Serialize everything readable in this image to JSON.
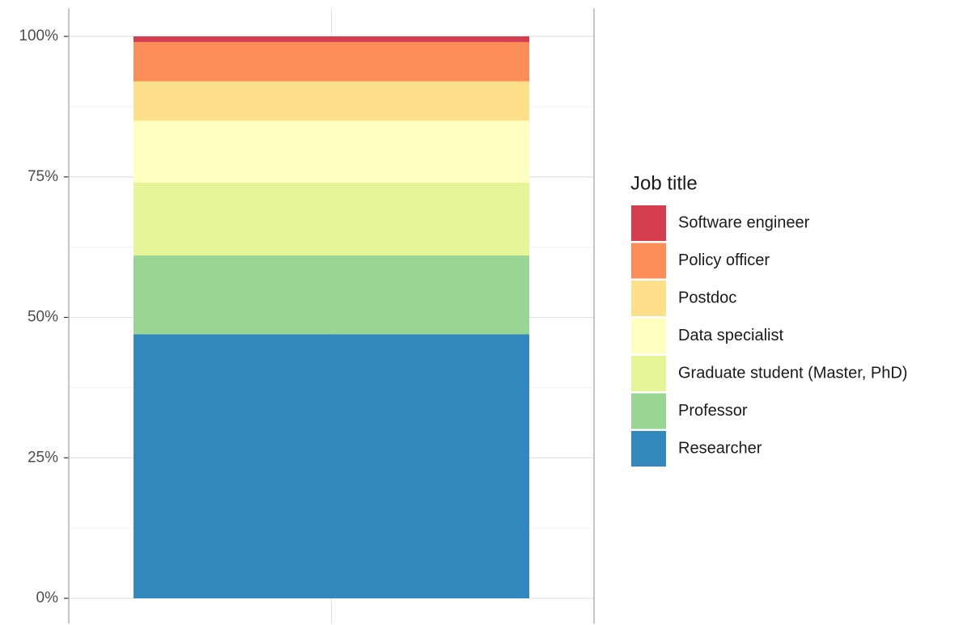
{
  "chart_data": {
    "type": "stacked_bar",
    "categories": [
      null
    ],
    "series": [
      {
        "name": "Researcher",
        "color": "#3288bd",
        "values": [
          47
        ]
      },
      {
        "name": "Professor",
        "color": "#99d594",
        "values": [
          14
        ]
      },
      {
        "name": "Graduate student (Master, PhD)",
        "color": "#e6f598",
        "values": [
          13
        ]
      },
      {
        "name": "Data specialist",
        "color": "#ffffbf",
        "values": [
          11
        ]
      },
      {
        "name": "Postdoc",
        "color": "#fee08b",
        "values": [
          7
        ]
      },
      {
        "name": "Policy officer",
        "color": "#fc8d59",
        "values": [
          7
        ]
      },
      {
        "name": "Software engineer",
        "color": "#d53e4f",
        "values": [
          1
        ]
      }
    ],
    "legend_title": "Job title",
    "ylim": [
      -4.5,
      105
    ],
    "yticks": [
      {
        "value": 0,
        "label": "0%"
      },
      {
        "value": 25,
        "label": "25%"
      },
      {
        "value": 50,
        "label": "50%"
      },
      {
        "value": 75,
        "label": "75%"
      },
      {
        "value": 100,
        "label": "100%"
      }
    ],
    "yminor": [
      12.5,
      37.5,
      62.5,
      87.5
    ],
    "grid": true
  }
}
